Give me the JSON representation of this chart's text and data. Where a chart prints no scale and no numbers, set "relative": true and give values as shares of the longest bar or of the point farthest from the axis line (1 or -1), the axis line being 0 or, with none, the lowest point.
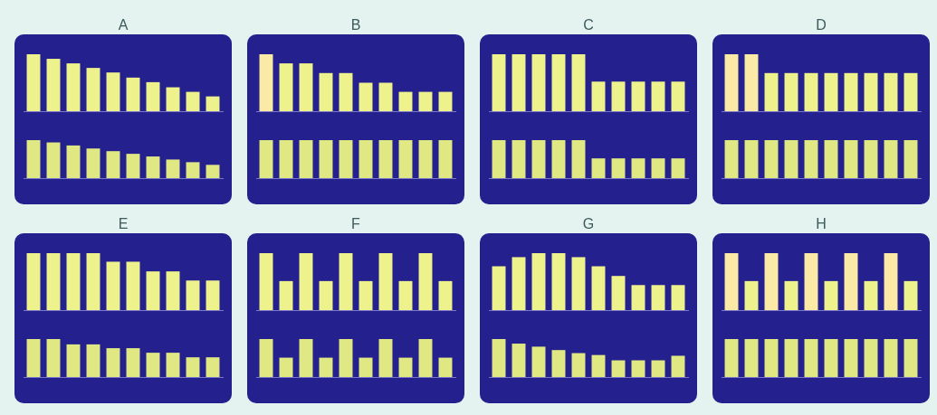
{
  "chart_data": [
    {
      "type": "bar",
      "title": "A",
      "relative": true,
      "categories": [
        null,
        null,
        null,
        null,
        null,
        null,
        null,
        null,
        null,
        null
      ],
      "color": "#eef28c",
      "values": [
        1,
        0.92,
        0.84,
        0.76,
        0.68,
        0.59,
        0.51,
        0.42,
        0.34,
        0.26
      ]
    },
    {
      "type": "bar",
      "relative": true,
      "categories": [
        null,
        null,
        null,
        null,
        null,
        null,
        null,
        null,
        null,
        null
      ],
      "color": "#dfe883",
      "values": [
        1,
        0.94,
        0.86,
        0.78,
        0.71,
        0.64,
        0.57,
        0.49,
        0.42,
        0.35
      ]
    },
    {
      "type": "bar",
      "title": "B",
      "relative": true,
      "categories": [
        null,
        null,
        null,
        null,
        null,
        null,
        null,
        null,
        null,
        null
      ],
      "colors": [
        "#fbeaa6",
        "#eef28c",
        "#eef28c",
        "#eef28c",
        "#eef28c",
        "#eef28c",
        "#eef28c",
        "#eef28c",
        "#eef28c",
        "#eef28c"
      ],
      "values": [
        1,
        0.84,
        0.84,
        0.67,
        0.67,
        0.5,
        0.5,
        0.34,
        0.34,
        0.34
      ]
    },
    {
      "type": "bar",
      "relative": true,
      "categories": [
        null,
        null,
        null,
        null,
        null,
        null,
        null,
        null,
        null,
        null
      ],
      "color": "#dfe883",
      "values": [
        1,
        1,
        1,
        1,
        1,
        1,
        1,
        1,
        1,
        1
      ]
    },
    {
      "type": "bar",
      "title": "C",
      "relative": true,
      "categories": [
        null,
        null,
        null,
        null,
        null,
        null,
        null,
        null,
        null,
        null
      ],
      "color": "#eef28c",
      "values": [
        1,
        1,
        1,
        1,
        1,
        0.52,
        0.52,
        0.52,
        0.52,
        0.52
      ]
    },
    {
      "type": "bar",
      "relative": true,
      "categories": [
        null,
        null,
        null,
        null,
        null,
        null,
        null,
        null,
        null,
        null
      ],
      "color": "#dfe883",
      "values": [
        1,
        1,
        1,
        1,
        1,
        0.52,
        0.52,
        0.52,
        0.52,
        0.52
      ]
    },
    {
      "type": "bar",
      "title": "D",
      "relative": true,
      "categories": [
        null,
        null,
        null,
        null,
        null,
        null,
        null,
        null,
        null,
        null
      ],
      "colors": [
        "#fbeaa6",
        "#fbeaa6",
        "#eef28c",
        "#eef28c",
        "#eef28c",
        "#eef28c",
        "#eef28c",
        "#eef28c",
        "#eef28c",
        "#eef28c"
      ],
      "values": [
        1,
        1,
        0.67,
        0.67,
        0.67,
        0.67,
        0.67,
        0.67,
        0.67,
        0.67
      ]
    },
    {
      "type": "bar",
      "relative": true,
      "categories": [
        null,
        null,
        null,
        null,
        null,
        null,
        null,
        null,
        null,
        null
      ],
      "color": "#dfe883",
      "values": [
        1,
        1,
        1,
        1,
        1,
        1,
        1,
        1,
        1,
        1
      ]
    },
    {
      "type": "bar",
      "title": "E",
      "relative": true,
      "categories": [
        null,
        null,
        null,
        null,
        null,
        null,
        null,
        null,
        null,
        null
      ],
      "color": "#eef28c",
      "values": [
        1,
        1,
        1,
        1,
        0.85,
        0.85,
        0.68,
        0.68,
        0.52,
        0.52
      ]
    },
    {
      "type": "bar",
      "relative": true,
      "categories": [
        null,
        null,
        null,
        null,
        null,
        null,
        null,
        null,
        null,
        null
      ],
      "color": "#dfe883",
      "values": [
        1,
        1,
        0.86,
        0.86,
        0.76,
        0.76,
        0.64,
        0.64,
        0.52,
        0.52
      ]
    },
    {
      "type": "bar",
      "title": "F",
      "relative": true,
      "categories": [
        null,
        null,
        null,
        null,
        null,
        null,
        null,
        null,
        null,
        null
      ],
      "color": "#eef28c",
      "values": [
        1,
        0.51,
        1,
        0.51,
        1,
        0.51,
        1,
        0.51,
        1,
        0.51
      ]
    },
    {
      "type": "bar",
      "relative": true,
      "categories": [
        null,
        null,
        null,
        null,
        null,
        null,
        null,
        null,
        null,
        null
      ],
      "color": "#dfe883",
      "values": [
        1,
        0.51,
        1,
        0.51,
        1,
        0.51,
        1,
        0.51,
        1,
        0.51
      ]
    },
    {
      "type": "bar",
      "title": "G",
      "relative": true,
      "categories": [
        null,
        null,
        null,
        null,
        null,
        null,
        null,
        null,
        null,
        null
      ],
      "color": "#eef28c",
      "values": [
        0.77,
        0.93,
        1,
        1,
        0.93,
        0.77,
        0.6,
        0.44,
        0.44,
        0.44
      ]
    },
    {
      "type": "bar",
      "relative": true,
      "categories": [
        null,
        null,
        null,
        null,
        null,
        null,
        null,
        null,
        null,
        null
      ],
      "color": "#dfe883",
      "values": [
        1,
        0.88,
        0.8,
        0.71,
        0.63,
        0.58,
        0.44,
        0.44,
        0.44,
        0.56
      ]
    },
    {
      "type": "bar",
      "title": "H",
      "relative": true,
      "categories": [
        null,
        null,
        null,
        null,
        null,
        null,
        null,
        null,
        null,
        null
      ],
      "colors": [
        "#fbeaa6",
        "#eef28c",
        "#fbeaa6",
        "#eef28c",
        "#fbeaa6",
        "#eef28c",
        "#fbeaa6",
        "#eef28c",
        "#fbeaa6",
        "#eef28c"
      ],
      "values": [
        1,
        0.51,
        1,
        0.51,
        1,
        0.51,
        1,
        0.51,
        1,
        0.51
      ]
    },
    {
      "type": "bar",
      "relative": true,
      "categories": [
        null,
        null,
        null,
        null,
        null,
        null,
        null,
        null,
        null,
        null
      ],
      "color": "#dfe883",
      "values": [
        1,
        1,
        1,
        1,
        1,
        1,
        1,
        1,
        1,
        1
      ]
    }
  ]
}
